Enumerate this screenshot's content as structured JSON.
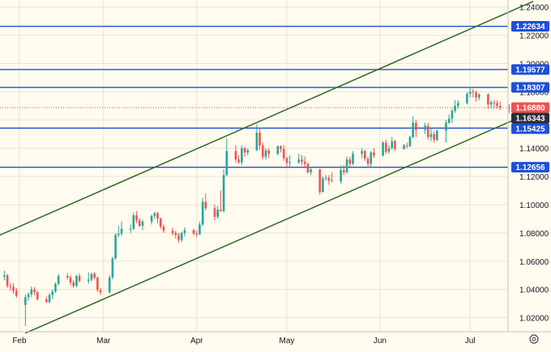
{
  "chart_data": {
    "type": "candlestick",
    "title": "",
    "xlabel": "",
    "ylabel": "",
    "ylim": [
      1.01,
      1.245
    ],
    "x_range": [
      "2025-01-25",
      "2025-07-22"
    ],
    "y_ticks": [
      "1.24000",
      "1.22000",
      "1.20000",
      "1.18000",
      "1.16000",
      "1.14000",
      "1.12000",
      "1.10000",
      "1.08000",
      "1.06000",
      "1.04000",
      "1.02000"
    ],
    "x_ticks": [
      {
        "label": "Feb",
        "date": "2025-02-01"
      },
      {
        "label": "Mar",
        "date": "2025-03-01"
      },
      {
        "label": "Apr",
        "date": "2025-04-01"
      },
      {
        "label": "May",
        "date": "2025-05-01"
      },
      {
        "label": "Jun",
        "date": "2025-06-01"
      },
      {
        "label": "Jul",
        "date": "2025-07-01"
      }
    ],
    "horizontal_levels": [
      {
        "value": 1.22634,
        "label": "1.22634"
      },
      {
        "value": 1.19577,
        "label": "1.19577"
      },
      {
        "value": 1.18307,
        "label": "1.18307"
      },
      {
        "value": 1.15425,
        "label": "1.15425"
      },
      {
        "value": 1.12656,
        "label": "1.12656"
      }
    ],
    "price_labels": [
      {
        "value": 1.1688,
        "label": "1.16880",
        "kind": "last-price"
      },
      {
        "value": 1.16343,
        "label": "1.16343",
        "kind": "marker"
      }
    ],
    "channel_lines": [
      {
        "name": "upper",
        "start": {
          "date": "2025-01-25",
          "value": 1.078
        },
        "end": {
          "date": "2025-07-22",
          "value": 1.244
        }
      },
      {
        "name": "lower",
        "start": {
          "date": "2025-02-03",
          "value": 1.009
        },
        "end": {
          "date": "2025-07-22",
          "value": 1.166
        }
      }
    ],
    "colors": {
      "background": "#fffbee",
      "up": "#26a69a",
      "down": "#ef5350",
      "levels": "#1e4fd8",
      "channel": "#2d6a1f",
      "last_price": "#ef5350",
      "marker": "#2a2e39"
    },
    "candles": [
      [
        "2025-01-27",
        1.049,
        1.0532,
        1.0465,
        1.05
      ],
      [
        "2025-01-28",
        1.05,
        1.051,
        1.041,
        1.0425
      ],
      [
        "2025-01-29",
        1.0425,
        1.0445,
        1.039,
        1.0418
      ],
      [
        "2025-01-30",
        1.0418,
        1.0445,
        1.037,
        1.039
      ],
      [
        "2025-01-31",
        1.039,
        1.041,
        1.034,
        1.0355
      ],
      [
        "2025-02-03",
        1.029,
        1.0365,
        1.014,
        1.0345
      ],
      [
        "2025-02-04",
        1.0345,
        1.038,
        1.032,
        1.0365
      ],
      [
        "2025-02-05",
        1.0365,
        1.042,
        1.0345,
        1.04
      ],
      [
        "2025-02-06",
        1.04,
        1.0415,
        1.036,
        1.038
      ],
      [
        "2025-02-07",
        1.038,
        1.039,
        1.032,
        1.033
      ],
      [
        "2025-02-10",
        1.033,
        1.035,
        1.0305,
        1.031
      ],
      [
        "2025-02-11",
        1.031,
        1.0375,
        1.03,
        1.036
      ],
      [
        "2025-02-12",
        1.036,
        1.04,
        1.033,
        1.0385
      ],
      [
        "2025-02-13",
        1.0385,
        1.045,
        1.0375,
        1.044
      ],
      [
        "2025-02-14",
        1.044,
        1.051,
        1.043,
        1.0495
      ],
      [
        "2025-02-17",
        1.0495,
        1.0515,
        1.047,
        1.0485
      ],
      [
        "2025-02-18",
        1.0485,
        1.05,
        1.043,
        1.045
      ],
      [
        "2025-02-19",
        1.045,
        1.0465,
        1.041,
        1.0425
      ],
      [
        "2025-02-20",
        1.0425,
        1.0505,
        1.0415,
        1.0495
      ],
      [
        "2025-02-21",
        1.0495,
        1.0515,
        1.045,
        1.046
      ],
      [
        "2025-02-24",
        1.046,
        1.052,
        1.044,
        1.047
      ],
      [
        "2025-02-25",
        1.047,
        1.052,
        1.0455,
        1.051
      ],
      [
        "2025-02-26",
        1.051,
        1.0525,
        1.047,
        1.0485
      ],
      [
        "2025-02-27",
        1.0485,
        1.049,
        1.038,
        1.0395
      ],
      [
        "2025-02-28",
        1.0395,
        1.041,
        1.036,
        1.038
      ],
      [
        "2025-03-03",
        1.038,
        1.05,
        1.037,
        1.0485
      ],
      [
        "2025-03-04",
        1.0485,
        1.063,
        1.047,
        1.062
      ],
      [
        "2025-03-05",
        1.062,
        1.08,
        1.061,
        1.0785
      ],
      [
        "2025-03-06",
        1.0785,
        1.085,
        1.077,
        1.0795
      ],
      [
        "2025-03-07",
        1.0795,
        1.088,
        1.078,
        1.083
      ],
      [
        "2025-03-10",
        1.083,
        1.086,
        1.08,
        1.083
      ],
      [
        "2025-03-11",
        1.083,
        1.0945,
        1.082,
        1.0925
      ],
      [
        "2025-03-12",
        1.0925,
        1.0955,
        1.087,
        1.089
      ],
      [
        "2025-03-13",
        1.089,
        1.0905,
        1.084,
        1.085
      ],
      [
        "2025-03-14",
        1.085,
        1.0895,
        1.082,
        1.088
      ],
      [
        "2025-03-17",
        1.088,
        1.093,
        1.086,
        1.092
      ],
      [
        "2025-03-18",
        1.092,
        1.095,
        1.09,
        1.094
      ],
      [
        "2025-03-19",
        1.094,
        1.095,
        1.087,
        1.09
      ],
      [
        "2025-03-20",
        1.09,
        1.091,
        1.083,
        1.0845
      ],
      [
        "2025-03-21",
        1.0845,
        1.086,
        1.08,
        1.0815
      ],
      [
        "2025-03-24",
        1.0815,
        1.0835,
        1.078,
        1.08
      ],
      [
        "2025-03-25",
        1.08,
        1.0815,
        1.076,
        1.0785
      ],
      [
        "2025-03-26",
        1.0785,
        1.08,
        1.073,
        1.075
      ],
      [
        "2025-03-27",
        1.075,
        1.081,
        1.0735,
        1.08
      ],
      [
        "2025-03-28",
        1.08,
        1.084,
        1.0775,
        1.082
      ],
      [
        "2025-03-31",
        1.082,
        1.083,
        1.078,
        1.0795
      ],
      [
        "2025-04-01",
        1.0795,
        1.0815,
        1.077,
        1.079
      ],
      [
        "2025-04-02",
        1.079,
        1.088,
        1.0785,
        1.086
      ],
      [
        "2025-04-03",
        1.086,
        1.105,
        1.085,
        1.102
      ],
      [
        "2025-04-04",
        1.102,
        1.108,
        1.096,
        1.0975
      ],
      [
        "2025-04-07",
        1.0975,
        1.1,
        1.089,
        1.0915
      ],
      [
        "2025-04-08",
        1.0915,
        1.099,
        1.09,
        1.0965
      ],
      [
        "2025-04-09",
        1.0965,
        1.11,
        1.095,
        1.0955
      ],
      [
        "2025-04-10",
        1.0955,
        1.125,
        1.0945,
        1.121
      ],
      [
        "2025-04-11",
        1.121,
        1.147,
        1.12,
        1.138
      ],
      [
        "2025-04-14",
        1.138,
        1.142,
        1.13,
        1.132
      ],
      [
        "2025-04-15",
        1.132,
        1.135,
        1.129,
        1.13
      ],
      [
        "2025-04-16",
        1.13,
        1.142,
        1.128,
        1.14
      ],
      [
        "2025-04-17",
        1.14,
        1.141,
        1.134,
        1.137
      ],
      [
        "2025-04-18",
        1.137,
        1.14,
        1.135,
        1.1385
      ],
      [
        "2025-04-21",
        1.1385,
        1.157,
        1.138,
        1.151
      ],
      [
        "2025-04-22",
        1.151,
        1.154,
        1.139,
        1.142
      ],
      [
        "2025-04-23",
        1.142,
        1.144,
        1.132,
        1.134
      ],
      [
        "2025-04-24",
        1.134,
        1.14,
        1.132,
        1.1385
      ],
      [
        "2025-04-25",
        1.1385,
        1.14,
        1.133,
        1.136
      ],
      [
        "2025-04-28",
        1.136,
        1.142,
        1.135,
        1.1415
      ],
      [
        "2025-04-29",
        1.1415,
        1.142,
        1.137,
        1.1395
      ],
      [
        "2025-04-30",
        1.1395,
        1.142,
        1.131,
        1.133
      ],
      [
        "2025-05-01",
        1.133,
        1.134,
        1.127,
        1.1295
      ],
      [
        "2025-05-02",
        1.1295,
        1.135,
        1.127,
        1.13
      ],
      [
        "2025-05-05",
        1.13,
        1.136,
        1.129,
        1.132
      ],
      [
        "2025-05-06",
        1.132,
        1.135,
        1.128,
        1.1305
      ],
      [
        "2025-05-07",
        1.1305,
        1.134,
        1.127,
        1.129
      ],
      [
        "2025-05-08",
        1.129,
        1.13,
        1.122,
        1.123
      ],
      [
        "2025-05-09",
        1.123,
        1.127,
        1.121,
        1.125
      ],
      [
        "2025-05-12",
        1.125,
        1.1255,
        1.107,
        1.109
      ],
      [
        "2025-05-13",
        1.109,
        1.12,
        1.1085,
        1.1185
      ],
      [
        "2025-05-14",
        1.1185,
        1.121,
        1.117,
        1.119
      ],
      [
        "2025-05-15",
        1.119,
        1.121,
        1.114,
        1.117
      ],
      [
        "2025-05-16",
        1.117,
        1.123,
        1.116,
        1.1165
      ],
      [
        "2025-05-19",
        1.1165,
        1.128,
        1.115,
        1.1245
      ],
      [
        "2025-05-20",
        1.1245,
        1.128,
        1.121,
        1.123
      ],
      [
        "2025-05-21",
        1.123,
        1.134,
        1.122,
        1.132
      ],
      [
        "2025-05-22",
        1.132,
        1.134,
        1.127,
        1.129
      ],
      [
        "2025-05-23",
        1.129,
        1.138,
        1.128,
        1.136
      ],
      [
        "2025-05-26",
        1.136,
        1.14,
        1.133,
        1.138
      ],
      [
        "2025-05-27",
        1.138,
        1.139,
        1.131,
        1.1325
      ],
      [
        "2025-05-28",
        1.1325,
        1.134,
        1.126,
        1.129
      ],
      [
        "2025-05-29",
        1.129,
        1.138,
        1.126,
        1.137
      ],
      [
        "2025-05-30",
        1.137,
        1.14,
        1.133,
        1.135
      ],
      [
        "2025-06-02",
        1.135,
        1.145,
        1.134,
        1.144
      ],
      [
        "2025-06-03",
        1.144,
        1.146,
        1.136,
        1.1375
      ],
      [
        "2025-06-04",
        1.1375,
        1.142,
        1.136,
        1.14
      ],
      [
        "2025-06-05",
        1.14,
        1.148,
        1.139,
        1.145
      ],
      [
        "2025-06-06",
        1.145,
        1.146,
        1.138,
        1.1395
      ],
      [
        "2025-06-09",
        1.1395,
        1.143,
        1.139,
        1.142
      ],
      [
        "2025-06-10",
        1.142,
        1.144,
        1.14,
        1.1415
      ],
      [
        "2025-06-11",
        1.1415,
        1.149,
        1.141,
        1.148
      ],
      [
        "2025-06-12",
        1.148,
        1.1625,
        1.147,
        1.158
      ],
      [
        "2025-06-13",
        1.158,
        1.16,
        1.148,
        1.153
      ],
      [
        "2025-06-16",
        1.153,
        1.158,
        1.15,
        1.156
      ],
      [
        "2025-06-17",
        1.156,
        1.158,
        1.146,
        1.148
      ],
      [
        "2025-06-18",
        1.148,
        1.154,
        1.145,
        1.15
      ],
      [
        "2025-06-19",
        1.15,
        1.152,
        1.144,
        1.146
      ],
      [
        "2025-06-20",
        1.146,
        1.153,
        1.145,
        1.1525
      ],
      [
        "2025-06-23",
        1.1525,
        1.16,
        1.144,
        1.158
      ],
      [
        "2025-06-24",
        1.158,
        1.164,
        1.157,
        1.161
      ],
      [
        "2025-06-25",
        1.161,
        1.168,
        1.158,
        1.1665
      ],
      [
        "2025-06-26",
        1.1665,
        1.174,
        1.165,
        1.17
      ],
      [
        "2025-06-27",
        1.17,
        1.174,
        1.168,
        1.172
      ],
      [
        "2025-06-30",
        1.172,
        1.18,
        1.171,
        1.1785
      ],
      [
        "2025-07-01",
        1.1785,
        1.183,
        1.176,
        1.18
      ],
      [
        "2025-07-02",
        1.18,
        1.182,
        1.176,
        1.1795
      ],
      [
        "2025-07-03",
        1.1795,
        1.181,
        1.173,
        1.176
      ],
      [
        "2025-07-04",
        1.176,
        1.179,
        1.174,
        1.178
      ],
      [
        "2025-07-07",
        1.178,
        1.179,
        1.168,
        1.171
      ],
      [
        "2025-07-08",
        1.171,
        1.174,
        1.168,
        1.1725
      ],
      [
        "2025-07-09",
        1.1725,
        1.174,
        1.168,
        1.172
      ],
      [
        "2025-07-10",
        1.172,
        1.174,
        1.168,
        1.17
      ],
      [
        "2025-07-11",
        1.17,
        1.173,
        1.167,
        1.169
      ],
      [
        "2025-07-14",
        1.169,
        1.171,
        1.165,
        1.1688
      ]
    ]
  }
}
